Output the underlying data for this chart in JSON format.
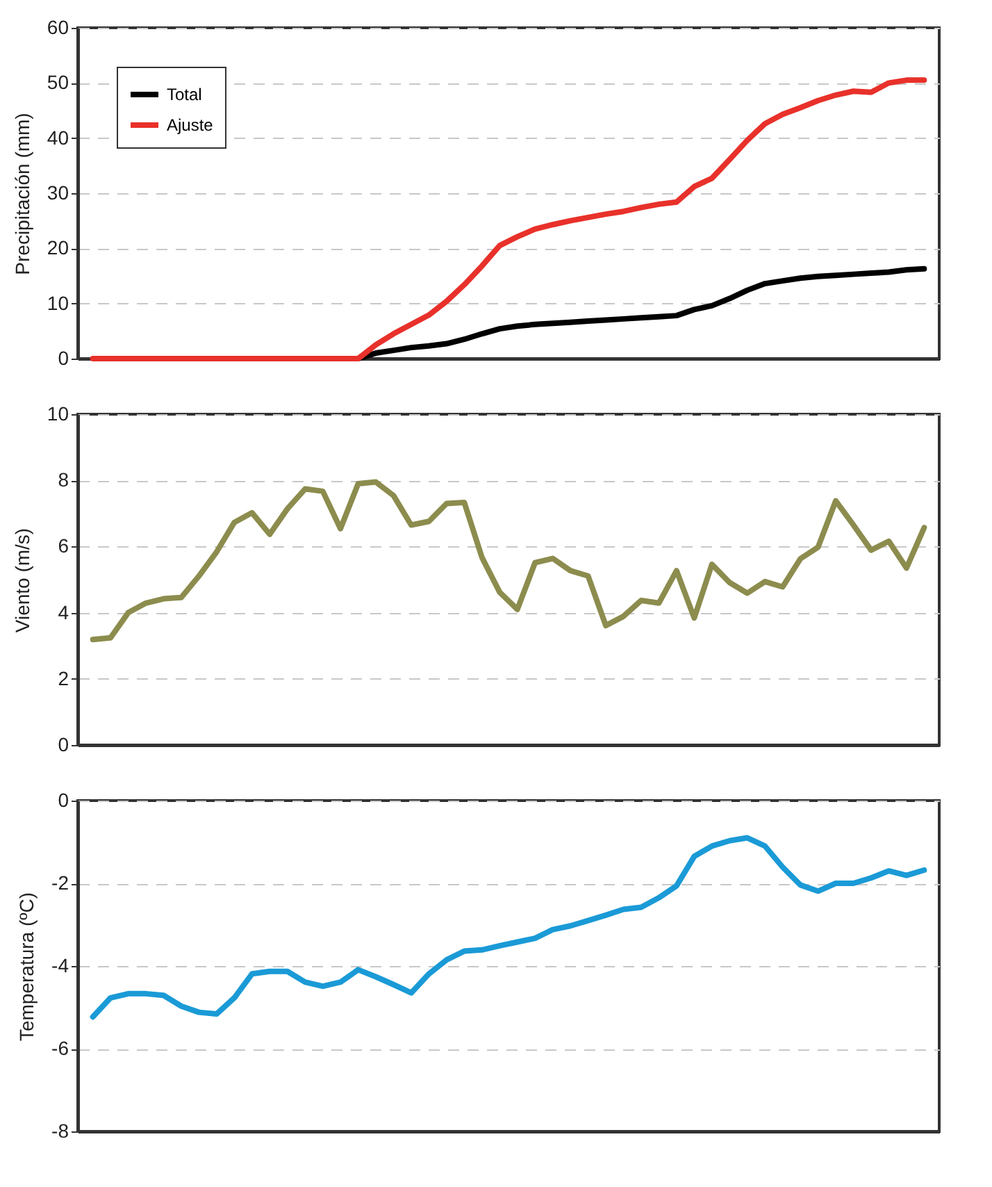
{
  "chart_data": [
    {
      "type": "line",
      "ylabel": "Precipitación (mm)",
      "categories": [
        null,
        null,
        null,
        null,
        null,
        null,
        null,
        null,
        null,
        null,
        null,
        null,
        null,
        null,
        null,
        null,
        null,
        null,
        null,
        null,
        null,
        null,
        null,
        null,
        null,
        null,
        null,
        null,
        null,
        null,
        null,
        null,
        null,
        null,
        null,
        null,
        null,
        null,
        null,
        null,
        null,
        null,
        null,
        null,
        null,
        null,
        null,
        null
      ],
      "ylim": [
        0,
        60
      ],
      "yticks": [
        0,
        10,
        20,
        30,
        40,
        50,
        60
      ],
      "grid": "y",
      "tick_labels": "y",
      "legend": "top left",
      "series": [
        {
          "name": "Total",
          "color": "#000000",
          "values": [
            null,
            null,
            null,
            null,
            null,
            null,
            null,
            null,
            null,
            null,
            null,
            null,
            null,
            null,
            null,
            0,
            1.0,
            1.5,
            2.0,
            2.3,
            2.7,
            3.5,
            4.5,
            5.4,
            5.9,
            6.2,
            6.4,
            6.6,
            6.8,
            7.0,
            7.2,
            7.4,
            7.6,
            7.8,
            8.9,
            9.6,
            10.9,
            12.4,
            13.6,
            14.1,
            14.6,
            14.9,
            15.1,
            15.3,
            15.5,
            15.7,
            16.1,
            16.3
          ]
        },
        {
          "name": "Ajuste",
          "color": "#e8312a",
          "values": [
            0,
            0,
            0,
            0,
            0,
            0,
            0,
            0,
            0,
            0,
            0,
            0,
            0,
            0,
            0,
            0,
            2.5,
            4.5,
            6.2,
            7.9,
            10.4,
            13.4,
            16.8,
            20.5,
            22.1,
            23.5,
            24.3,
            25.0,
            25.6,
            26.2,
            26.7,
            27.4,
            28.0,
            28.4,
            31.2,
            32.7,
            36.1,
            39.6,
            42.6,
            44.3,
            45.5,
            46.8,
            47.8,
            48.5,
            48.3,
            50.0,
            50.5,
            50.5
          ]
        }
      ]
    },
    {
      "type": "line",
      "ylabel": "Viento (m/s)",
      "categories": [
        null,
        null,
        null,
        null,
        null,
        null,
        null,
        null,
        null,
        null,
        null,
        null,
        null,
        null,
        null,
        null,
        null,
        null,
        null,
        null,
        null,
        null,
        null,
        null,
        null,
        null,
        null,
        null,
        null,
        null,
        null,
        null,
        null,
        null,
        null,
        null,
        null,
        null,
        null,
        null,
        null,
        null,
        null,
        null,
        null,
        null,
        null,
        null
      ],
      "ylim": [
        0,
        10
      ],
      "yticks": [
        0,
        2,
        4,
        6,
        8,
        10
      ],
      "grid": "y",
      "tick_labels": "y",
      "series": [
        {
          "color": "#8c8c4e",
          "values": [
            3.19,
            3.24,
            4.0,
            4.29,
            4.42,
            4.46,
            5.11,
            5.84,
            6.73,
            7.02,
            6.37,
            7.14,
            7.74,
            7.67,
            6.54,
            7.9,
            7.95,
            7.54,
            6.65,
            6.76,
            7.3,
            7.33,
            5.67,
            4.62,
            4.1,
            5.51,
            5.64,
            5.27,
            5.11,
            3.61,
            3.89,
            4.37,
            4.29,
            5.27,
            3.84,
            5.46,
            4.91,
            4.59,
            4.94,
            4.78,
            5.63,
            5.98,
            7.38,
            6.65,
            5.89,
            6.16,
            5.35,
            6.57
          ]
        }
      ]
    },
    {
      "type": "line",
      "ylabel": "Temperatura (ºC)",
      "categories": [
        null,
        null,
        null,
        null,
        null,
        null,
        null,
        null,
        null,
        null,
        null,
        null,
        null,
        null,
        null,
        null,
        null,
        null,
        null,
        null,
        null,
        null,
        null,
        null,
        null,
        null,
        null,
        null,
        null,
        null,
        null,
        null,
        null,
        null,
        null,
        null,
        null,
        null,
        null,
        null,
        null,
        null,
        null,
        null,
        null,
        null,
        null,
        null
      ],
      "ylim": [
        -8,
        0
      ],
      "yticks": [
        -8,
        -6,
        -4,
        -2,
        0
      ],
      "grid": "y",
      "tick_labels": "y",
      "series": [
        {
          "color": "#1a9ad6",
          "values": [
            -5.23,
            -4.77,
            -4.67,
            -4.67,
            -4.71,
            -4.97,
            -5.12,
            -5.16,
            -4.77,
            -4.19,
            -4.13,
            -4.13,
            -4.39,
            -4.49,
            -4.39,
            -4.09,
            -4.26,
            -4.45,
            -4.65,
            -4.19,
            -3.85,
            -3.64,
            -3.61,
            -3.51,
            -3.42,
            -3.33,
            -3.12,
            -3.03,
            -2.9,
            -2.77,
            -2.63,
            -2.58,
            -2.35,
            -2.06,
            -1.35,
            -1.1,
            -0.97,
            -0.9,
            -1.1,
            -1.61,
            -2.04,
            -2.19,
            -2.0,
            -2.0,
            -1.87,
            -1.7,
            -1.81,
            -1.68
          ]
        }
      ]
    }
  ]
}
